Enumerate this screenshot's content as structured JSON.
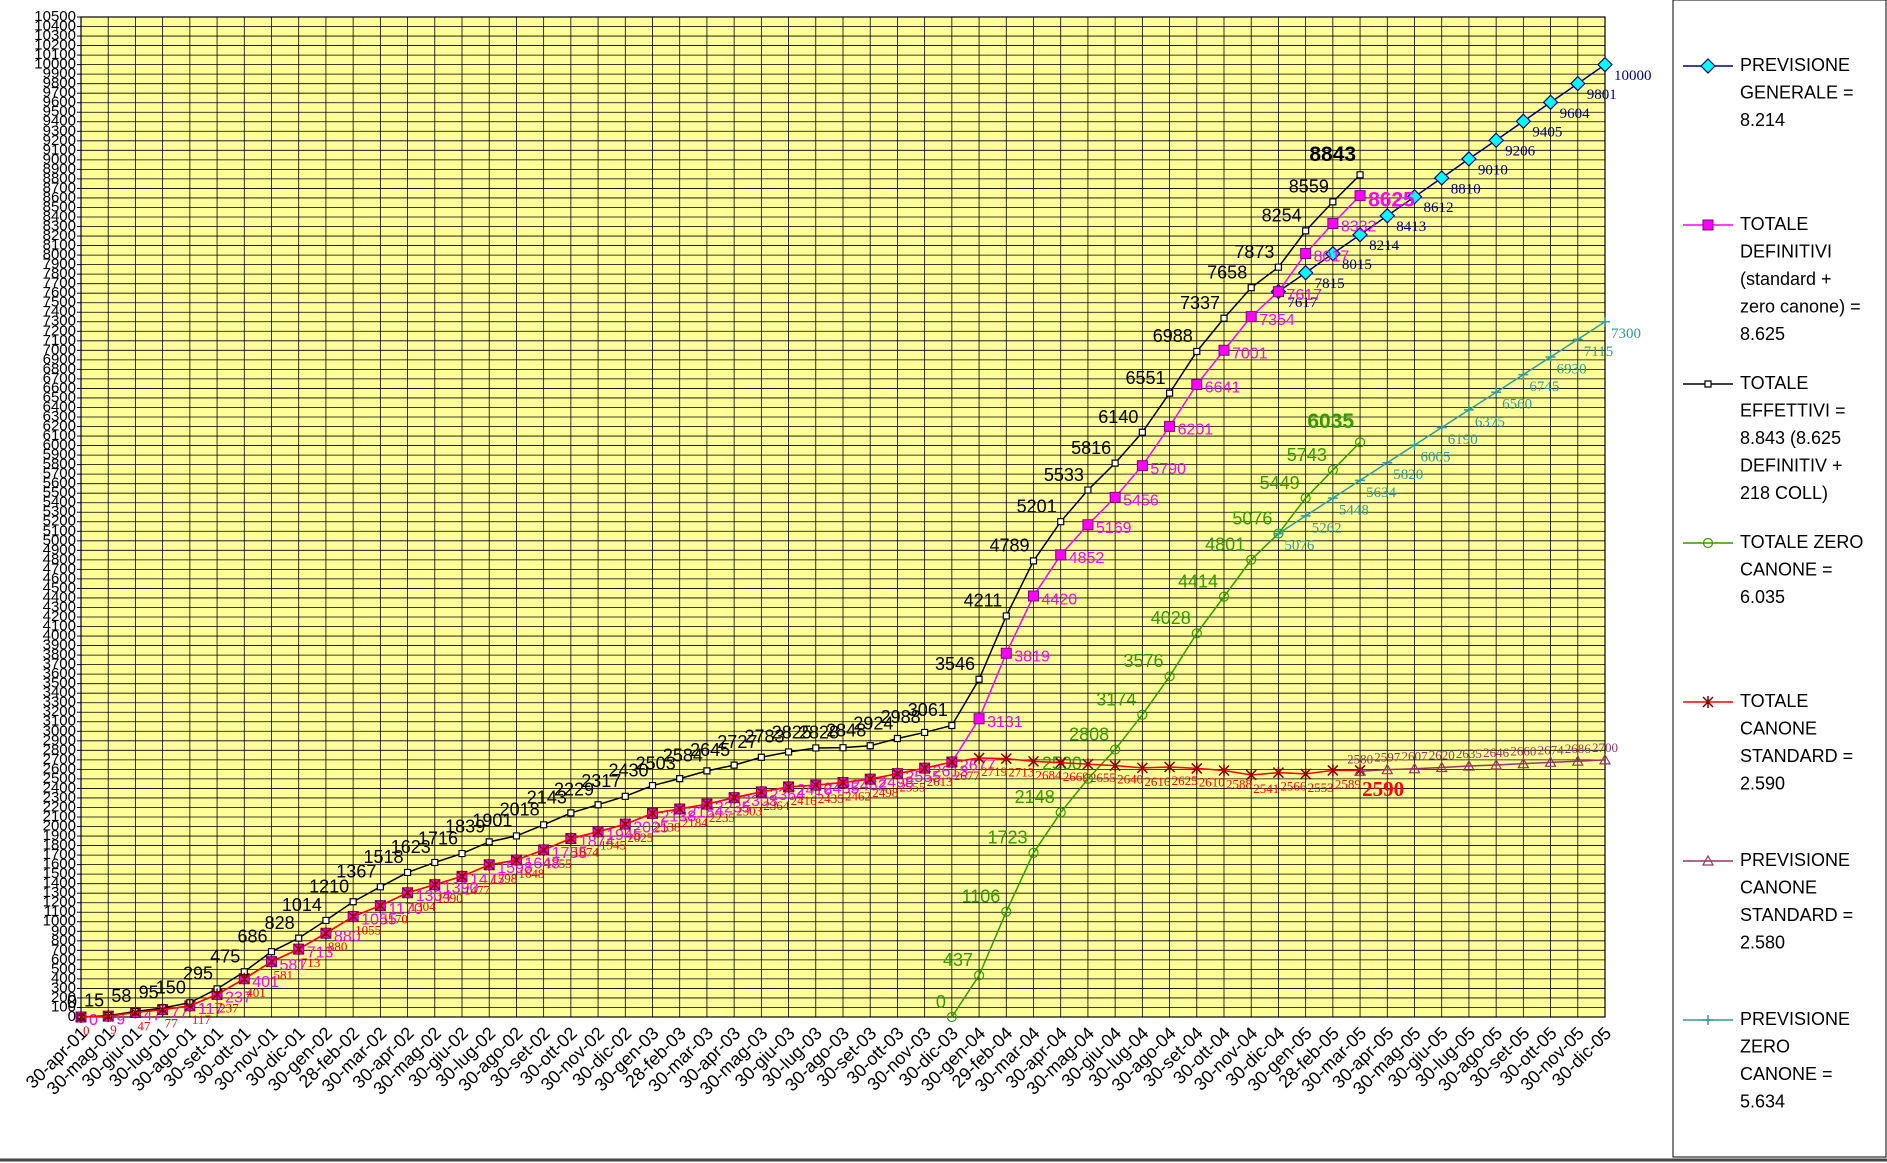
{
  "chart_data": {
    "type": "line",
    "categories": [
      "30-apr-01",
      "30-mag-01",
      "30-giu-01",
      "30-lug-01",
      "30-ago-01",
      "30-set-01",
      "30-ott-01",
      "30-nov-01",
      "30-dic-01",
      "30-gen-02",
      "28-feb-02",
      "30-mar-02",
      "30-apr-02",
      "30-mag-02",
      "30-giu-02",
      "30-lug-02",
      "30-ago-02",
      "30-set-02",
      "30-ott-02",
      "30-nov-02",
      "30-dic-02",
      "30-gen-03",
      "28-feb-03",
      "30-mar-03",
      "30-apr-03",
      "30-mag-03",
      "30-giu-03",
      "30-lug-03",
      "30-ago-03",
      "30-set-03",
      "30-ott-03",
      "30-nov-03",
      "30-dic-03",
      "30-gen-04",
      "29-feb-04",
      "30-mar-04",
      "30-apr-04",
      "30-mag-04",
      "30-giu-04",
      "30-lug-04",
      "30-ago-04",
      "30-set-04",
      "30-ott-04",
      "30-nov-04",
      "30-dic-04",
      "30-gen-05",
      "28-feb-05",
      "30-mar-05",
      "30-apr-05",
      "30-mag-05",
      "30-giu-05",
      "30-lug-05",
      "30-ago-05",
      "30-set-05",
      "30-ott-05",
      "30-nov-05",
      "30-dic-05"
    ],
    "ylim": [
      0,
      10500
    ],
    "yticks": [
      0,
      100,
      200,
      300,
      400,
      500,
      600,
      700,
      800,
      900,
      1000,
      1100,
      1200,
      1300,
      1400,
      1500,
      1600,
      1700,
      1800,
      1900,
      2000,
      2100,
      2200,
      2300,
      2400,
      2500,
      2600,
      2700,
      2800,
      2900,
      3000,
      3100,
      3200,
      3300,
      3400,
      3500,
      3600,
      3700,
      3800,
      3900,
      4000,
      4100,
      4200,
      4300,
      4400,
      4500,
      4600,
      4700,
      4800,
      4900,
      5000,
      5100,
      5200,
      5300,
      5400,
      5500,
      5600,
      5700,
      5800,
      5900,
      6000,
      6100,
      6200,
      6300,
      6400,
      6500,
      6600,
      6700,
      6800,
      6900,
      7000,
      7100,
      7200,
      7300,
      7400,
      7500,
      7600,
      7700,
      7800,
      7900,
      8000,
      8100,
      8200,
      8300,
      8400,
      8500,
      8600,
      8700,
      8800,
      8900,
      9000,
      9100,
      9200,
      9300,
      9400,
      9500,
      9600,
      9700,
      9800,
      9900,
      10000,
      10100,
      10200,
      10300,
      10400,
      10500
    ],
    "grid": true,
    "legend": "right",
    "series": [
      {
        "name": "PREVISIONE GENERALE = 8.214",
        "color": "#000080",
        "marker": "diamond",
        "values": [
          null,
          null,
          null,
          null,
          null,
          null,
          null,
          null,
          null,
          null,
          null,
          null,
          null,
          null,
          null,
          null,
          null,
          null,
          null,
          null,
          null,
          null,
          null,
          null,
          null,
          null,
          null,
          null,
          null,
          null,
          null,
          null,
          null,
          null,
          null,
          null,
          null,
          null,
          null,
          null,
          null,
          null,
          null,
          null,
          7617,
          7815,
          8015,
          8214,
          8413,
          8612,
          8810,
          9010,
          9206,
          9405,
          9604,
          9801,
          10000
        ]
      },
      {
        "name": "TOTALE DEFINITIVI (standard + zero canone) = 8.625",
        "color": "#ff00ff",
        "marker": "square",
        "values": [
          0,
          9,
          47,
          77,
          117,
          237,
          401,
          581,
          713,
          880,
          1055,
          1170,
          1304,
          1390,
          1477,
          1598,
          1648,
          1755,
          1874,
          1945,
          2025,
          2138,
          2184,
          2235,
          2303,
          2364,
          2416,
          2435,
          2462,
          2498,
          2555,
          2613,
          2677,
          3131,
          3819,
          4420,
          4852,
          5169,
          5456,
          5790,
          6201,
          6641,
          7001,
          7354,
          7617,
          8017,
          8332,
          8625,
          null,
          null,
          null,
          null,
          null,
          null,
          null,
          null,
          null
        ]
      },
      {
        "name": "TOTALE EFFETTIVI = 8.843 (8.625 DEFINITIV + 218 COLL)",
        "color": "#000000",
        "marker": "smallsquare",
        "values": [
          0,
          15,
          58,
          95,
          150,
          295,
          475,
          686,
          828,
          1014,
          1210,
          1367,
          1518,
          1623,
          1716,
          1839,
          1901,
          2018,
          2143,
          2229,
          2317,
          2430,
          2503,
          2584,
          2645,
          2727,
          2783,
          2825,
          2828,
          2848,
          2924,
          2988,
          3061,
          3546,
          4211,
          4789,
          5201,
          5533,
          5816,
          6140,
          6551,
          6988,
          7337,
          7658,
          7873,
          8254,
          8559,
          8843,
          null,
          null,
          null,
          null,
          null,
          null,
          null,
          null,
          null
        ]
      },
      {
        "name": "TOTALE ZERO CANONE = 6.035",
        "color": "#339900",
        "marker": "circle",
        "values": [
          null,
          null,
          null,
          null,
          null,
          null,
          null,
          null,
          null,
          null,
          null,
          null,
          null,
          null,
          null,
          null,
          null,
          null,
          null,
          null,
          null,
          null,
          null,
          null,
          null,
          null,
          null,
          null,
          null,
          null,
          null,
          null,
          0,
          437,
          1106,
          1723,
          2148,
          2500,
          2808,
          3174,
          3576,
          4028,
          4414,
          4801,
          5076,
          5449,
          5743,
          6035,
          null,
          null,
          null,
          null,
          null,
          null,
          null,
          null,
          null
        ]
      },
      {
        "name": "TOTALE CANONE STANDARD = 2.590",
        "color": "#ff0000",
        "marker": "asterisk",
        "values": [
          0,
          9,
          47,
          77,
          117,
          237,
          401,
          581,
          713,
          880,
          1055,
          1170,
          1304,
          1390,
          1477,
          1598,
          1648,
          1755,
          1874,
          1945,
          2025,
          2138,
          2184,
          2235,
          2303,
          2364,
          2416,
          2435,
          2462,
          2498,
          2555,
          2613,
          2677,
          2719,
          2713,
          2684,
          2669,
          2655,
          2640,
          2616,
          2625,
          2610,
          2588,
          2541,
          2566,
          2553,
          2589,
          2590,
          null,
          null,
          null,
          null,
          null,
          null,
          null,
          null,
          null
        ]
      },
      {
        "name": "PREVISIONE CANONE STANDARD = 2.580",
        "color": "#993366",
        "marker": "triangle",
        "values": [
          null,
          null,
          null,
          null,
          null,
          null,
          null,
          null,
          null,
          null,
          null,
          null,
          null,
          null,
          null,
          null,
          null,
          null,
          null,
          null,
          null,
          null,
          null,
          null,
          null,
          null,
          null,
          null,
          null,
          null,
          null,
          null,
          null,
          null,
          null,
          null,
          null,
          null,
          null,
          null,
          null,
          null,
          null,
          null,
          null,
          null,
          null,
          2580,
          2597,
          2607,
          2620,
          2635,
          2646,
          2660,
          2674,
          2686,
          2700
        ]
      },
      {
        "name": "PREVISIONE ZERO CANONE = 5.634",
        "color": "#339999",
        "marker": "plus",
        "values": [
          null,
          null,
          null,
          null,
          null,
          null,
          null,
          null,
          null,
          null,
          null,
          null,
          null,
          null,
          null,
          null,
          null,
          null,
          null,
          null,
          null,
          null,
          null,
          null,
          null,
          null,
          null,
          null,
          null,
          null,
          null,
          null,
          null,
          null,
          null,
          null,
          null,
          null,
          null,
          null,
          null,
          null,
          null,
          null,
          5076,
          5262,
          5448,
          5634,
          5820,
          6005,
          6190,
          6375,
          6560,
          6745,
          6930,
          7115,
          7300
        ]
      }
    ]
  }
}
